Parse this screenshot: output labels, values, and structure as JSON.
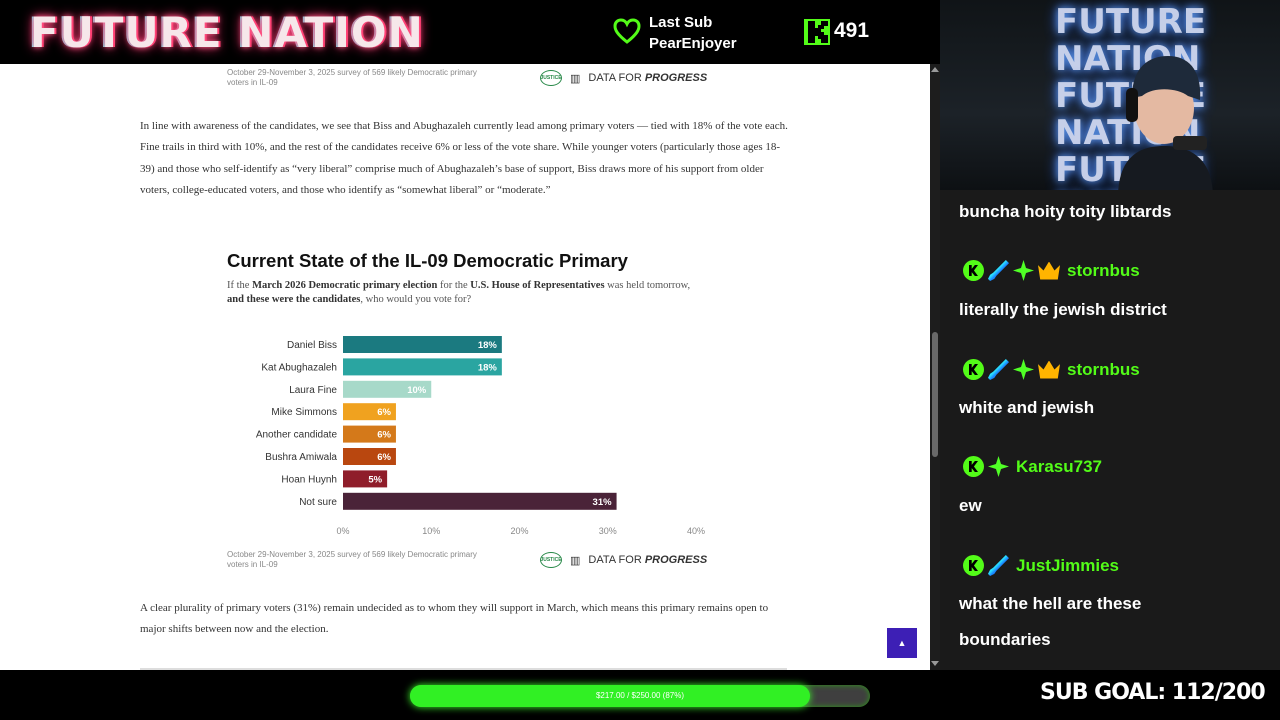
{
  "overlay": {
    "logo_text": "FUTURE NATION",
    "last_sub_label": "Last Sub",
    "last_sub_name": "PearEnjoyer",
    "viewer_count": "491",
    "cam_text": "FUTURE NATION",
    "progress_text": "$217.00 / $250.00 (87%)",
    "progress_fraction": 0.87,
    "sub_goal": "SUB GOAL: 112/200",
    "accent_color": "#53fc18"
  },
  "article": {
    "source_note_top": "October 29-November 3, 2025 survey of 569 likely Democratic primary voters in IL-09",
    "justice_badge": "JUSTICE",
    "dfp_logo": "DATA FOR PROGRESS",
    "dfp_logo_plain": "DATA FOR ",
    "dfp_logo_bold": "PROGRESS",
    "paragraph1": "In line with awareness of the candidates, we see that Biss and Abughazaleh currently lead among primary voters — tied with 18% of the vote each. Fine trails in third with 10%, and the rest of the candidates receive 6% or less of the vote share. While younger voters (particularly those ages 18-39) and those who self-identify as “very liberal” comprise much of Abughazaleh’s base of support, Biss draws more of his support from older voters, college-educated voters, and those who identify as “somewhat liberal” or “moderate.”",
    "chart_title": "Current State of the IL-09 Democratic Primary",
    "chart_question_parts": [
      "If the ",
      "March 2026 Democratic primary election",
      " for the ",
      "U.S. House of Representatives",
      " was held tomorrow, ",
      "and these were the candidates",
      ", who would you vote for?"
    ],
    "source_note_bottom": "October 29-November 3, 2025 survey of 569 likely Democratic primary voters in IL-09",
    "paragraph2": "A clear plurality of primary voters (31%) remain undecided as to whom they will support in March, which means this primary remains open to major shifts between now and the election.",
    "scroll_top_label": "▲"
  },
  "chart_data": {
    "type": "bar",
    "orientation": "horizontal",
    "title": "Current State of the IL-09 Democratic Primary",
    "categories": [
      "Daniel Biss",
      "Kat Abughazaleh",
      "Laura Fine",
      "Mike Simmons",
      "Another candidate",
      "Bushra Amiwala",
      "Hoan Huynh",
      "Not sure"
    ],
    "values": [
      18,
      18,
      10,
      6,
      6,
      6,
      5,
      31
    ],
    "labels": [
      "18%",
      "18%",
      "10%",
      "6%",
      "6%",
      "6%",
      "5%",
      "31%"
    ],
    "colors": [
      "#1b7a80",
      "#2aa5a1",
      "#a7d9c9",
      "#f0a21f",
      "#d4791a",
      "#b9470f",
      "#8f1d2a",
      "#4a2338"
    ],
    "xlim": [
      0,
      40
    ],
    "xticks": [
      "0%",
      "10%",
      "20%",
      "30%",
      "40%"
    ],
    "grid": false
  },
  "chat": {
    "messages": [
      {
        "user": "",
        "text": "buncha hoity toity libtards",
        "badges": []
      },
      {
        "user": "stornbus",
        "text": "literally the jewish district",
        "badges": [
          "kick-badge-icon",
          "sword-badge-icon",
          "gem-badge-icon",
          "crown-badge-icon"
        ]
      },
      {
        "user": "stornbus",
        "text": "white and jewish",
        "badges": [
          "kick-badge-icon",
          "sword-badge-icon",
          "gem-badge-icon",
          "crown-badge-icon"
        ]
      },
      {
        "user": "Karasu737",
        "text": "ew",
        "badges": [
          "kick-badge-icon",
          "gem-badge-icon"
        ]
      },
      {
        "user": "JustJimmies",
        "text": "what the hell are these",
        "text2": "boundaries",
        "badges": [
          "kick-badge-icon",
          "sword-badge-icon"
        ]
      }
    ]
  }
}
